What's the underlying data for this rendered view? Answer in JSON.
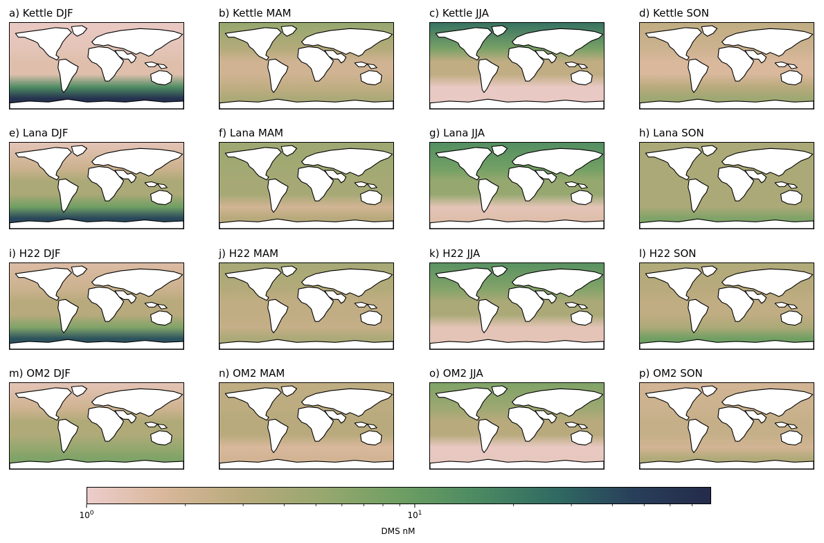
{
  "figure": {
    "colormap": {
      "name": "cubehelix-pink-to-navy",
      "stops": [
        "#eccdcb",
        "#d8b79a",
        "#b8aa7c",
        "#98a86f",
        "#6f9f63",
        "#4c8a62",
        "#306b62",
        "#283f5a",
        "#242b4a"
      ]
    },
    "land_color": "#ffffff",
    "coastline_color": "#000000",
    "panels": [
      {
        "title": "a) Kettle DJF",
        "level": {
          "north": 0.02,
          "tropics": 0.08,
          "south": 0.62,
          "southern_band": 0.95
        }
      },
      {
        "title": "b) Kettle MAM",
        "level": {
          "north": 0.38,
          "tropics": 0.16,
          "south": 0.22,
          "southern_band": 0.3
        }
      },
      {
        "title": "c) Kettle JJA",
        "level": {
          "north": 0.72,
          "tropics": 0.22,
          "south": 0.02,
          "southern_band": 0.02
        }
      },
      {
        "title": "d) Kettle SON",
        "level": {
          "north": 0.22,
          "tropics": 0.12,
          "south": 0.25,
          "southern_band": 0.35
        }
      },
      {
        "title": "e) Lana DJF",
        "level": {
          "north": 0.05,
          "tropics": 0.3,
          "south": 0.5,
          "southern_band": 0.85
        }
      },
      {
        "title": "f) Lana MAM",
        "level": {
          "north": 0.35,
          "tropics": 0.32,
          "south": 0.15,
          "southern_band": 0.25
        }
      },
      {
        "title": "g) Lana JJA",
        "level": {
          "north": 0.6,
          "tropics": 0.38,
          "south": 0.05,
          "southern_band": 0.08
        }
      },
      {
        "title": "h) Lana SON",
        "level": {
          "north": 0.3,
          "tropics": 0.3,
          "south": 0.3,
          "southern_band": 0.45
        }
      },
      {
        "title": "i) H22 DJF",
        "level": {
          "north": 0.1,
          "tropics": 0.25,
          "south": 0.45,
          "southern_band": 0.82
        }
      },
      {
        "title": "j) H22 MAM",
        "level": {
          "north": 0.32,
          "tropics": 0.22,
          "south": 0.2,
          "southern_band": 0.3
        }
      },
      {
        "title": "k) H22 JJA",
        "level": {
          "north": 0.58,
          "tropics": 0.3,
          "south": 0.05,
          "southern_band": 0.05
        }
      },
      {
        "title": "l) H22 SON",
        "level": {
          "north": 0.28,
          "tropics": 0.22,
          "south": 0.3,
          "southern_band": 0.5
        }
      },
      {
        "title": "m) OM2 DJF",
        "level": {
          "north": 0.05,
          "tropics": 0.28,
          "south": 0.38,
          "southern_band": 0.45
        }
      },
      {
        "title": "n) OM2 MAM",
        "level": {
          "north": 0.22,
          "tropics": 0.25,
          "south": 0.12,
          "southern_band": 0.15
        }
      },
      {
        "title": "o) OM2 JJA",
        "level": {
          "north": 0.45,
          "tropics": 0.25,
          "south": 0.02,
          "southern_band": 0.03
        }
      },
      {
        "title": "p) OM2 SON",
        "level": {
          "north": 0.15,
          "tropics": 0.2,
          "south": 0.15,
          "southern_band": 0.28
        }
      }
    ],
    "colorbar": {
      "label": "DMS nM",
      "scale": "log",
      "min": 1,
      "max": 80,
      "major_ticks": [
        {
          "value": 1,
          "base": "10",
          "exponent": "0"
        },
        {
          "value": 10,
          "base": "10",
          "exponent": "1"
        }
      ],
      "minor_ticks": [
        2,
        3,
        4,
        5,
        6,
        7,
        8,
        9,
        20,
        30,
        40,
        50,
        60,
        70
      ]
    }
  }
}
